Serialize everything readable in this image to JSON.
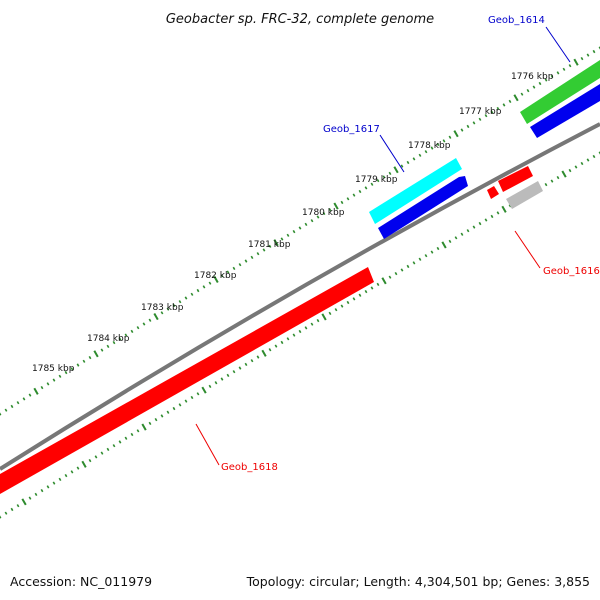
{
  "title": "Geobacter sp. FRC-32, complete genome",
  "colors": {
    "tick": "#2e8b2e",
    "backbone": "#777777",
    "red": "#ff0000",
    "blue": "#0000ee",
    "cyan": "#00ffff",
    "green": "#33cc33",
    "gray": "#bbbbbb",
    "label_blue": "#0000cc",
    "label_red": "#ee0000"
  },
  "ruler_labels": [
    "1776 kbp",
    "1777 kbp",
    "1778 kbp",
    "1779 kbp",
    "1780 kbp",
    "1781 kbp",
    "1782 kbp",
    "1783 kbp",
    "1784 kbp",
    "1785 kbp"
  ],
  "genes": {
    "geob_1614": "Geob_1614",
    "geob_1617": "Geob_1617",
    "geob_1616": "Geob_1616",
    "geob_1618": "Geob_1618"
  },
  "footer": {
    "accession": "Accession: NC_011979",
    "summary": "Topology: circular; Length: 4,304,501 bp; Genes: 3,855"
  }
}
